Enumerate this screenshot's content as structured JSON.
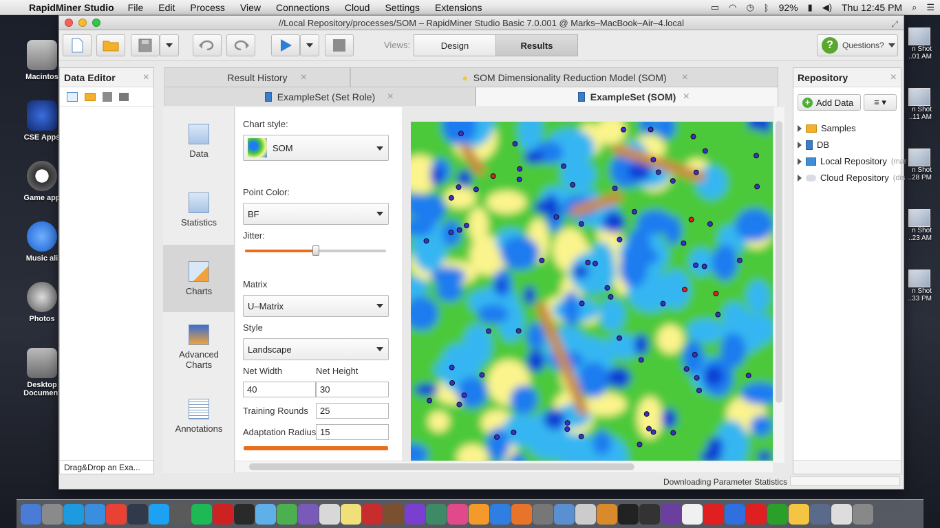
{
  "menubar": {
    "app_name": "RapidMiner Studio",
    "items": [
      "File",
      "Edit",
      "Process",
      "View",
      "Connections",
      "Cloud",
      "Settings",
      "Extensions"
    ],
    "battery": "92%",
    "clock": "Thu 12:45 PM"
  },
  "desktop_icons": [
    {
      "label": "Macintos"
    },
    {
      "label": "CSE Apps"
    },
    {
      "label": "Game app"
    },
    {
      "label": "Music ali"
    },
    {
      "label": "Photos"
    },
    {
      "label": "Desktop\nDocument"
    }
  ],
  "thumbs": [
    "n Shot\n..01 AM",
    "n Shot\n..11 AM",
    "n Shot\n..28 PM",
    "n Shot\n..23 AM",
    "n Shot\n..33 PM"
  ],
  "window": {
    "title": "//Local Repository/processes/SOM – RapidMiner Studio Basic 7.0.001 @ Marks–MacBook–Air–4.local",
    "views_label": "Views:",
    "view_design": "Design",
    "view_results": "Results",
    "questions": "Questions?"
  },
  "data_editor": {
    "title": "Data Editor",
    "footer": "Drag&Drop an Exa..."
  },
  "tabs": {
    "row1": [
      "Result History",
      "SOM Dimensionality Reduction Model (SOM)"
    ],
    "row2": [
      "ExampleSet (Set Role)",
      "ExampleSet (SOM)"
    ]
  },
  "nav": [
    "Data",
    "Statistics",
    "Charts",
    "Advanced\nCharts",
    "Annotations"
  ],
  "config": {
    "chart_style_label": "Chart style:",
    "chart_style": "SOM",
    "point_color_label": "Point Color:",
    "point_color": "BF",
    "jitter_label": "Jitter:",
    "jitter": 0.5,
    "matrix_label": "Matrix",
    "matrix": "U–Matrix",
    "style_label": "Style",
    "style": "Landscape",
    "net_width_label": "Net Width",
    "net_width": "40",
    "net_height_label": "Net Height",
    "net_height": "30",
    "training_rounds_label": "Training Rounds",
    "training_rounds": "25",
    "adaptation_radius_label": "Adaptation Radius",
    "adaptation_radius": "15"
  },
  "repository": {
    "title": "Repository",
    "add_data": "Add Data",
    "items": [
      {
        "name": "Samples",
        "suffix": ""
      },
      {
        "name": "DB",
        "suffix": ""
      },
      {
        "name": "Local Repository",
        "suffix": "(mar"
      },
      {
        "name": "Cloud Repository",
        "suffix": "(dis"
      }
    ]
  },
  "status": "Downloading Parameter Statistics",
  "colors": {
    "blue_deep": "#0a3fd6",
    "blue": "#1e7bf0",
    "cyan": "#35b6f2",
    "green": "#4cc93a",
    "green_light": "#8bdc55",
    "yellow": "#fbf48c",
    "brown": "#c98a3d",
    "accent_orange": "#e96e17"
  }
}
